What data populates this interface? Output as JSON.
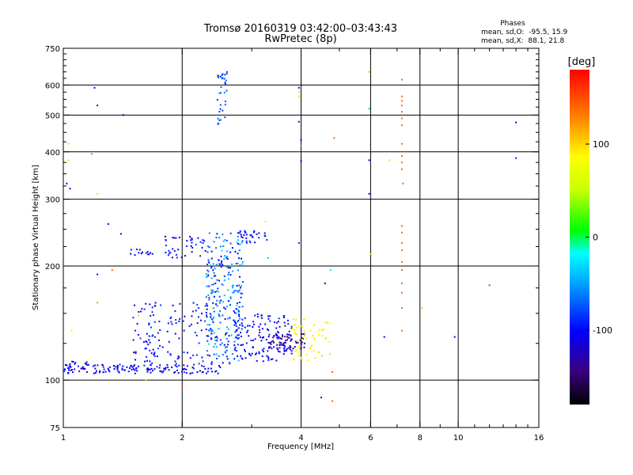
{
  "chart_data": {
    "type": "scatter",
    "title": "Tromsø 20160319 03:42:00–03:43:43",
    "subtitle": "RwPretec (8p)",
    "xlabel": "Frequency [MHz]",
    "ylabel": "Stationary phase Virtual Height [km]",
    "x_scale": "log",
    "y_scale": "log",
    "xlim": [
      1,
      16
    ],
    "ylim": [
      75,
      750
    ],
    "x_ticks": [
      1,
      2,
      4,
      6,
      8,
      10,
      16
    ],
    "x_minor_ticks": [
      3,
      5,
      7,
      9,
      11,
      12,
      13,
      14,
      15
    ],
    "y_ticks": [
      75,
      100,
      200,
      300,
      400,
      500,
      600,
      750
    ],
    "y_minor_ticks": [
      125,
      150,
      175,
      225,
      250,
      275,
      325,
      350,
      375,
      425,
      450,
      475,
      525,
      550,
      575,
      625,
      650,
      675,
      700,
      725
    ],
    "grid_x": [
      2,
      4,
      6,
      8,
      10
    ],
    "grid_y": [
      100,
      200,
      300,
      400,
      500,
      600
    ],
    "legend": {
      "heading": "Phases",
      "line1": "mean, sd,O:  -95.5, 15.9",
      "line2": "mean, sd,X:  88.1, 21.8"
    },
    "colorbar": {
      "label": "[deg]",
      "range": [
        -180,
        180
      ],
      "ticks": [
        -100,
        0,
        100
      ]
    },
    "clusters": [
      {
        "seed": 11,
        "n": 40,
        "x": [
          1.0,
          1.2
        ],
        "y": [
          104,
          112
        ],
        "phase": [
          -120,
          -90
        ]
      },
      {
        "seed": 12,
        "n": 120,
        "x": [
          1.2,
          2.5
        ],
        "y": [
          104,
          110
        ],
        "phase": [
          -120,
          -90
        ]
      },
      {
        "seed": 13,
        "n": 130,
        "x": [
          1.5,
          2.4
        ],
        "y": [
          110,
          160
        ],
        "phase": [
          -120,
          -80
        ]
      },
      {
        "seed": 14,
        "n": 260,
        "x": [
          2.3,
          2.85
        ],
        "y": [
          110,
          245
        ],
        "phase": [
          -110,
          -30
        ]
      },
      {
        "seed": 15,
        "n": 140,
        "x": [
          2.7,
          3.8
        ],
        "y": [
          112,
          150
        ],
        "phase": [
          -120,
          -85
        ]
      },
      {
        "seed": 16,
        "n": 60,
        "x": [
          3.3,
          4.1
        ],
        "y": [
          120,
          133
        ],
        "phase": [
          -150,
          -110
        ]
      },
      {
        "seed": 17,
        "n": 60,
        "x": [
          3.8,
          4.8
        ],
        "y": [
          112,
          145
        ],
        "phase": [
          85,
          100
        ]
      },
      {
        "seed": 18,
        "n": 40,
        "x": [
          1.8,
          2.3
        ],
        "y": [
          210,
          240
        ],
        "phase": [
          -120,
          -80
        ]
      },
      {
        "seed": 19,
        "n": 30,
        "x": [
          2.8,
          3.3
        ],
        "y": [
          230,
          248
        ],
        "phase": [
          -120,
          -80
        ]
      },
      {
        "seed": 20,
        "n": 35,
        "x": [
          2.45,
          2.6
        ],
        "y": [
          470,
          650
        ],
        "phase": [
          -90,
          -60
        ]
      },
      {
        "seed": 21,
        "n": 14,
        "x": [
          1.45,
          1.75
        ],
        "y": [
          212,
          222
        ],
        "phase": [
          -110,
          -90
        ]
      }
    ],
    "x_columns": [
      {
        "x": 7.2,
        "heights": [
          135,
          155,
          170,
          180,
          195,
          205,
          220,
          230,
          245,
          255,
          360,
          375,
          390,
          420,
          470,
          490,
          510,
          530,
          545,
          560,
          620
        ],
        "phase": 140
      }
    ],
    "scattered_points": [
      {
        "x": 1.02,
        "y": 330,
        "phase": -100
      },
      {
        "x": 1.03,
        "y": 380,
        "phase": 100
      },
      {
        "x": 1.03,
        "y": 420,
        "phase": 100
      },
      {
        "x": 1.04,
        "y": 320,
        "phase": -100
      },
      {
        "x": 1.2,
        "y": 590,
        "phase": -100
      },
      {
        "x": 1.22,
        "y": 530,
        "phase": -100
      },
      {
        "x": 1.18,
        "y": 395,
        "phase": 140
      },
      {
        "x": 1.22,
        "y": 310,
        "phase": 100
      },
      {
        "x": 1.42,
        "y": 500,
        "phase": -100
      },
      {
        "x": 1.33,
        "y": 195,
        "phase": 140
      },
      {
        "x": 1.3,
        "y": 258,
        "phase": -100
      },
      {
        "x": 1.4,
        "y": 243,
        "phase": -100
      },
      {
        "x": 1.22,
        "y": 190,
        "phase": -100
      },
      {
        "x": 1.22,
        "y": 160,
        "phase": 120
      },
      {
        "x": 1.55,
        "y": 148,
        "phase": 100
      },
      {
        "x": 1.65,
        "y": 140,
        "phase": -60
      },
      {
        "x": 1.62,
        "y": 100,
        "phase": 100
      },
      {
        "x": 1.05,
        "y": 135,
        "phase": 90
      },
      {
        "x": 2.0,
        "y": 96,
        "phase": 140
      },
      {
        "x": 3.25,
        "y": 262,
        "phase": 60
      },
      {
        "x": 3.3,
        "y": 210,
        "phase": -40
      },
      {
        "x": 3.95,
        "y": 590,
        "phase": -100
      },
      {
        "x": 3.95,
        "y": 575,
        "phase": 50
      },
      {
        "x": 3.95,
        "y": 560,
        "phase": 100
      },
      {
        "x": 3.95,
        "y": 480,
        "phase": -100
      },
      {
        "x": 4.0,
        "y": 430,
        "phase": -100
      },
      {
        "x": 4.0,
        "y": 378,
        "phase": -100
      },
      {
        "x": 4.0,
        "y": 415,
        "phase": 140
      },
      {
        "x": 3.95,
        "y": 230,
        "phase": -100
      },
      {
        "x": 4.5,
        "y": 90,
        "phase": -100
      },
      {
        "x": 4.8,
        "y": 88,
        "phase": 140
      },
      {
        "x": 4.8,
        "y": 105,
        "phase": 140
      },
      {
        "x": 4.85,
        "y": 435,
        "phase": 140
      },
      {
        "x": 4.75,
        "y": 195,
        "phase": -30
      },
      {
        "x": 4.6,
        "y": 180,
        "phase": -100
      },
      {
        "x": 5.95,
        "y": 650,
        "phase": 110
      },
      {
        "x": 5.95,
        "y": 520,
        "phase": -40
      },
      {
        "x": 5.95,
        "y": 380,
        "phase": -100
      },
      {
        "x": 5.95,
        "y": 310,
        "phase": -100
      },
      {
        "x": 6.0,
        "y": 215,
        "phase": 110
      },
      {
        "x": 6.7,
        "y": 380,
        "phase": 100
      },
      {
        "x": 6.5,
        "y": 130,
        "phase": -100
      },
      {
        "x": 8.1,
        "y": 155,
        "phase": 100
      },
      {
        "x": 9.8,
        "y": 130,
        "phase": -100
      },
      {
        "x": 12.0,
        "y": 178,
        "phase": -60
      },
      {
        "x": 14.0,
        "y": 478,
        "phase": -100
      },
      {
        "x": 14.0,
        "y": 385,
        "phase": -100
      },
      {
        "x": 7.25,
        "y": 330,
        "phase": 140
      }
    ]
  }
}
